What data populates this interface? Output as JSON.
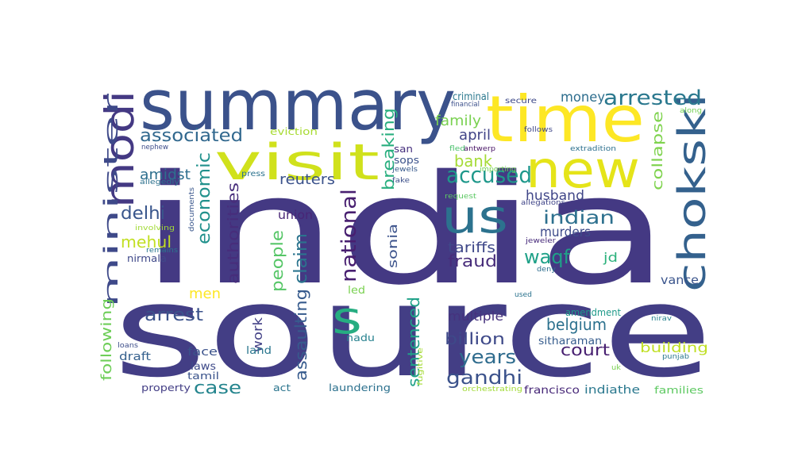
{
  "cloud": {
    "words": [
      {
        "text": "india",
        "color": "#443983"
      },
      {
        "text": "source",
        "color": "#433e85"
      },
      {
        "text": "summary",
        "color": "#3b528b"
      },
      {
        "text": "time",
        "color": "#fde725"
      },
      {
        "text": "visit",
        "color": "#d0e11c"
      },
      {
        "text": "new",
        "color": "#e5e419"
      },
      {
        "text": "us",
        "color": "#2c728e"
      },
      {
        "text": "chokski",
        "color": "#34618d"
      },
      {
        "text": "modi",
        "color": "#443983"
      },
      {
        "text": "s",
        "color": "#26ad81"
      },
      {
        "text": "minister",
        "color": "#3e4989"
      },
      {
        "text": "arrested",
        "color": "#2a788e"
      },
      {
        "text": "accused",
        "color": "#1f988b"
      },
      {
        "text": "associated",
        "color": "#31688e"
      },
      {
        "text": "money",
        "color": "#2e6e8e"
      },
      {
        "text": "economic",
        "color": "#21918c"
      },
      {
        "text": "authorities",
        "color": "#472d7b"
      },
      {
        "text": "national",
        "color": "#481f70"
      },
      {
        "text": "claim",
        "color": "#2b748e"
      },
      {
        "text": "breaking",
        "color": "#29af7f"
      },
      {
        "text": "family",
        "color": "#7ad151"
      },
      {
        "text": "april",
        "color": "#414487"
      },
      {
        "text": "bank",
        "color": "#a5db36"
      },
      {
        "text": "reuters",
        "color": "#3b528b"
      },
      {
        "text": "delhi",
        "color": "#39568c"
      },
      {
        "text": "amidst",
        "color": "#2e6f8e"
      },
      {
        "text": "indian",
        "color": "#2d708e"
      },
      {
        "text": "husband",
        "color": "#404688"
      },
      {
        "text": "waqf",
        "color": "#1fa188"
      },
      {
        "text": "murders",
        "color": "#3e4c8a"
      },
      {
        "text": "tariffs",
        "color": "#3f4889"
      },
      {
        "text": "fraud",
        "color": "#472c7a"
      },
      {
        "text": "mehul",
        "color": "#c2df23"
      },
      {
        "text": "people",
        "color": "#56c667"
      },
      {
        "text": "assaulting",
        "color": "#375b8d"
      },
      {
        "text": "sonia",
        "color": "#3b528b"
      },
      {
        "text": "union",
        "color": "#482576"
      },
      {
        "text": "collapse",
        "color": "#7fd34e"
      },
      {
        "text": "jd",
        "color": "#2db27d"
      },
      {
        "text": "vance",
        "color": "#3a548c"
      },
      {
        "text": "men",
        "color": "#fde725"
      },
      {
        "text": "arrest",
        "color": "#3b528b"
      },
      {
        "text": "sentenced",
        "color": "#1fa188"
      },
      {
        "text": "multiple",
        "color": "#46327e"
      },
      {
        "text": "belgium",
        "color": "#2c718e"
      },
      {
        "text": "billion",
        "color": "#3e4989"
      },
      {
        "text": "years",
        "color": "#2f6c8e"
      },
      {
        "text": "court",
        "color": "#482071"
      },
      {
        "text": "gandhi",
        "color": "#3b528b"
      },
      {
        "text": "case",
        "color": "#25858e"
      },
      {
        "text": "building",
        "color": "#c0df25"
      },
      {
        "text": "work",
        "color": "#424086"
      },
      {
        "text": "following",
        "color": "#6ece58"
      },
      {
        "text": "draft",
        "color": "#35608d"
      },
      {
        "text": "face",
        "color": "#3b528b"
      },
      {
        "text": "land",
        "color": "#2a768e"
      },
      {
        "text": "laws",
        "color": "#3e4a89"
      },
      {
        "text": "tamil",
        "color": "#3a538b"
      },
      {
        "text": "nadu",
        "color": "#26818e"
      },
      {
        "text": "property",
        "color": "#433e85"
      },
      {
        "text": "act",
        "color": "#2b758e"
      },
      {
        "text": "laundering",
        "color": "#2c718e"
      },
      {
        "text": "indiathe",
        "color": "#2a788e"
      },
      {
        "text": "families",
        "color": "#5ec962"
      },
      {
        "text": "francisco",
        "color": "#472878"
      },
      {
        "text": "sitharaman",
        "color": "#365c8d"
      },
      {
        "text": "amendment",
        "color": "#1f9a8a"
      },
      {
        "text": "nirmala",
        "color": "#3f4889"
      },
      {
        "text": "led",
        "color": "#7ad151"
      },
      {
        "text": "eviction",
        "color": "#a8db34"
      },
      {
        "text": "criminal",
        "color": "#2a788e"
      },
      {
        "text": "financial",
        "color": "#3c508b"
      },
      {
        "text": "secure",
        "color": "#3e4989"
      },
      {
        "text": "follows",
        "color": "#3f4788"
      },
      {
        "text": "extradition",
        "color": "#2d708e"
      },
      {
        "text": "along",
        "color": "#75d054"
      },
      {
        "text": "nephew",
        "color": "#3d4d8a"
      },
      {
        "text": "san",
        "color": "#46307e"
      },
      {
        "text": "sops",
        "color": "#3b528b"
      },
      {
        "text": "fled",
        "color": "#4ac16d"
      },
      {
        "text": "antwerp",
        "color": "#471365"
      },
      {
        "text": "press",
        "color": "#2c738e"
      },
      {
        "text": "jewels",
        "color": "#375a8c"
      },
      {
        "text": "importing",
        "color": "#73d056"
      },
      {
        "text": "fake",
        "color": "#3c4f8a"
      },
      {
        "text": "allegedly",
        "color": "#2d718e"
      },
      {
        "text": "documents",
        "color": "#39568c"
      },
      {
        "text": "involving",
        "color": "#a2da37"
      },
      {
        "text": "remains",
        "color": "#2a768e"
      },
      {
        "text": "request",
        "color": "#5cc863"
      },
      {
        "text": "allegations",
        "color": "#404588"
      },
      {
        "text": "jeweler",
        "color": "#472a7a"
      },
      {
        "text": "deny",
        "color": "#2e6d8e"
      },
      {
        "text": "used",
        "color": "#2c738e"
      },
      {
        "text": "nirav",
        "color": "#26828e"
      },
      {
        "text": "loans",
        "color": "#3d4e8a"
      },
      {
        "text": "punjab",
        "color": "#2a788e"
      },
      {
        "text": "uk",
        "color": "#7ad151"
      },
      {
        "text": "fugitive",
        "color": "#a5db36"
      },
      {
        "text": "orchestrating",
        "color": "#a2da37"
      }
    ]
  }
}
